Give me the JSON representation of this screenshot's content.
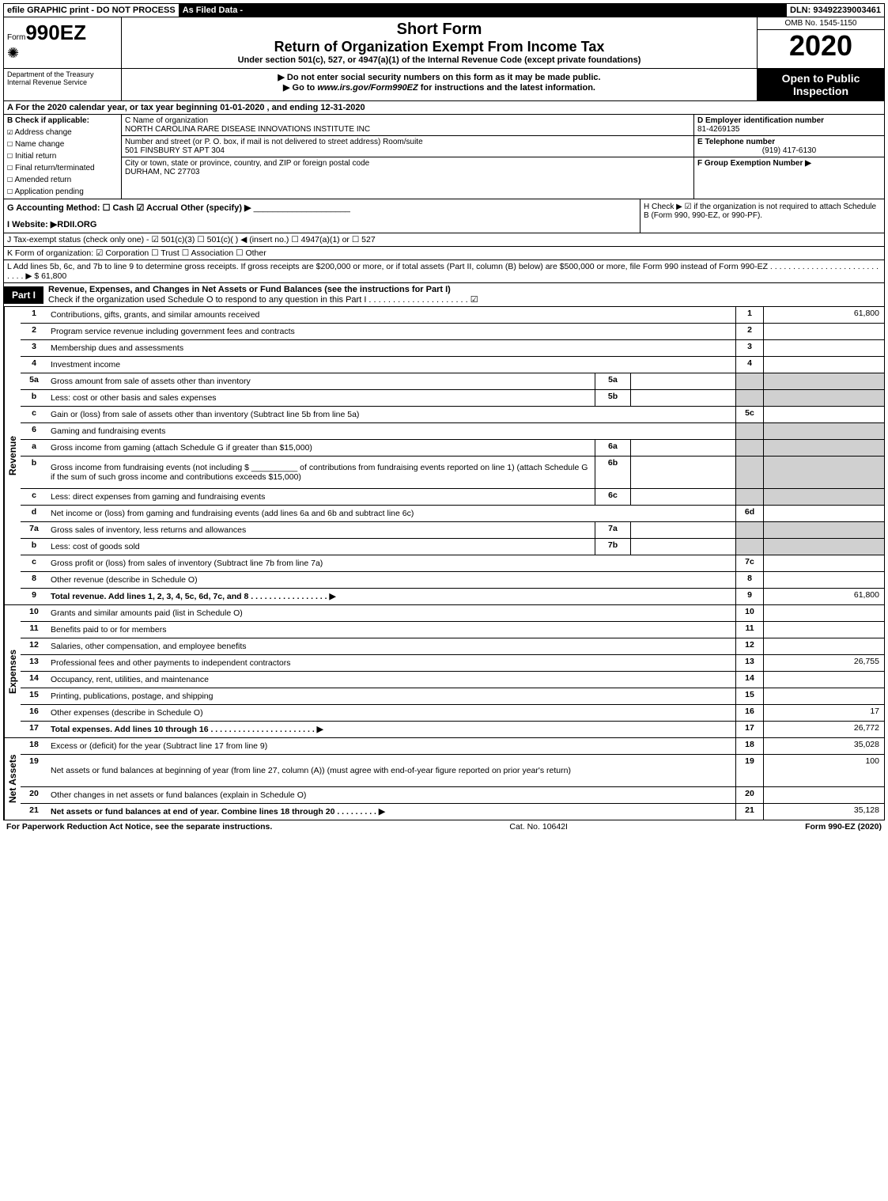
{
  "topbar": {
    "efile": "efile GRAPHIC print - DO NOT PROCESS",
    "asfiled": "As Filed Data -",
    "dln": "DLN: 93492239003461"
  },
  "header": {
    "form_prefix": "Form",
    "form_num": "990EZ",
    "short_form": "Short Form",
    "title": "Return of Organization Exempt From Income Tax",
    "subtitle": "Under section 501(c), 527, or 4947(a)(1) of the Internal Revenue Code (except private foundations)",
    "warn1": "▶ Do not enter social security numbers on this form as it may be made public.",
    "warn2": "▶ Go to www.irs.gov/Form990EZ for instructions and the latest information.",
    "omb": "OMB No. 1545-1150",
    "year": "2020",
    "badge": "Open to Public Inspection",
    "dept": "Department of the Treasury\nInternal Revenue Service"
  },
  "line_a": "A  For the 2020 calendar year, or tax year beginning 01-01-2020 , and ending 12-31-2020",
  "box_b": {
    "title": "B  Check if applicable:",
    "items": [
      {
        "chk": "☑",
        "label": "Address change"
      },
      {
        "chk": "☐",
        "label": "Name change"
      },
      {
        "chk": "☐",
        "label": "Initial return"
      },
      {
        "chk": "☐",
        "label": "Final return/terminated"
      },
      {
        "chk": "☐",
        "label": "Amended return"
      },
      {
        "chk": "☐",
        "label": "Application pending"
      }
    ]
  },
  "box_c": {
    "name_label": "C Name of organization",
    "name": "NORTH CAROLINA RARE DISEASE INNOVATIONS INSTITUTE INC",
    "addr_label": "Number and street (or P. O. box, if mail is not delivered to street address)   Room/suite",
    "addr": "501 FINSBURY ST APT 304",
    "city_label": "City or town, state or province, country, and ZIP or foreign postal code",
    "city": "DURHAM, NC  27703"
  },
  "box_de": {
    "d_label": "D Employer identification number",
    "d_val": "81-4269135",
    "e_label": "E Telephone number",
    "e_val": "(919) 417-6130",
    "f_label": "F Group Exemption Number  ▶"
  },
  "row_g": "G Accounting Method:   ☐ Cash   ☑ Accrual   Other (specify) ▶",
  "row_h": "H   Check ▶   ☑ if the organization is not required to attach Schedule B (Form 990, 990-EZ, or 990-PF).",
  "row_i": "I Website: ▶RDII.ORG",
  "row_j": "J Tax-exempt status (check only one) - ☑ 501(c)(3) ☐ 501(c)(  ) ◀ (insert no.) ☐ 4947(a)(1) or ☐ 527",
  "row_k": "K Form of organization:   ☑ Corporation   ☐ Trust   ☐ Association   ☐ Other",
  "row_l": "L Add lines 5b, 6c, and 7b to line 9 to determine gross receipts. If gross receipts are $200,000 or more, or if total assets (Part II, column (B) below) are $500,000 or more, file Form 990 instead of Form 990-EZ . . . . . . . . . . . . . . . . . . . . . . . . . . . . ▶ $ 61,800",
  "part1": {
    "tag": "Part I",
    "title": "Revenue, Expenses, and Changes in Net Assets or Fund Balances (see the instructions for Part I)",
    "sub": "Check if the organization used Schedule O to respond to any question in this Part I . . . . . . . . . . . . . . . . . . . . . ☑"
  },
  "sections": {
    "revenue": "Revenue",
    "expenses": "Expenses",
    "netassets": "Net Assets"
  },
  "rows": [
    {
      "n": "1",
      "d": "Contributions, gifts, grants, and similar amounts received",
      "rn": "1",
      "v": "61,800"
    },
    {
      "n": "2",
      "d": "Program service revenue including government fees and contracts",
      "rn": "2",
      "v": ""
    },
    {
      "n": "3",
      "d": "Membership dues and assessments",
      "rn": "3",
      "v": ""
    },
    {
      "n": "4",
      "d": "Investment income",
      "rn": "4",
      "v": ""
    },
    {
      "n": "5a",
      "d": "Gross amount from sale of assets other than inventory",
      "sn": "5a",
      "sv": "",
      "gray": true
    },
    {
      "n": "b",
      "d": "Less: cost or other basis and sales expenses",
      "sn": "5b",
      "sv": "",
      "gray": true
    },
    {
      "n": "c",
      "d": "Gain or (loss) from sale of assets other than inventory (Subtract line 5b from line 5a)",
      "rn": "5c",
      "v": ""
    },
    {
      "n": "6",
      "d": "Gaming and fundraising events",
      "gray": true,
      "noval": true
    },
    {
      "n": "a",
      "d": "Gross income from gaming (attach Schedule G if greater than $15,000)",
      "sn": "6a",
      "sv": "",
      "gray": true
    },
    {
      "n": "b",
      "d": "Gross income from fundraising events (not including $ __________ of contributions from fundraising events reported on line 1) (attach Schedule G if the sum of such gross income and contributions exceeds $15,000)",
      "sn": "6b",
      "sv": "",
      "gray": true,
      "tall": true
    },
    {
      "n": "c",
      "d": "Less: direct expenses from gaming and fundraising events",
      "sn": "6c",
      "sv": "",
      "gray": true
    },
    {
      "n": "d",
      "d": "Net income or (loss) from gaming and fundraising events (add lines 6a and 6b and subtract line 6c)",
      "rn": "6d",
      "v": ""
    },
    {
      "n": "7a",
      "d": "Gross sales of inventory, less returns and allowances",
      "sn": "7a",
      "sv": "",
      "gray": true
    },
    {
      "n": "b",
      "d": "Less: cost of goods sold",
      "sn": "7b",
      "sv": "",
      "gray": true
    },
    {
      "n": "c",
      "d": "Gross profit or (loss) from sales of inventory (Subtract line 7b from line 7a)",
      "rn": "7c",
      "v": ""
    },
    {
      "n": "8",
      "d": "Other revenue (describe in Schedule O)",
      "rn": "8",
      "v": ""
    },
    {
      "n": "9",
      "d": "Total revenue. Add lines 1, 2, 3, 4, 5c, 6d, 7c, and 8 . . . . . . . . . . . . . . . . . ▶",
      "rn": "9",
      "v": "61,800",
      "bold": true
    }
  ],
  "exp_rows": [
    {
      "n": "10",
      "d": "Grants and similar amounts paid (list in Schedule O)",
      "rn": "10",
      "v": ""
    },
    {
      "n": "11",
      "d": "Benefits paid to or for members",
      "rn": "11",
      "v": ""
    },
    {
      "n": "12",
      "d": "Salaries, other compensation, and employee benefits",
      "rn": "12",
      "v": ""
    },
    {
      "n": "13",
      "d": "Professional fees and other payments to independent contractors",
      "rn": "13",
      "v": "26,755"
    },
    {
      "n": "14",
      "d": "Occupancy, rent, utilities, and maintenance",
      "rn": "14",
      "v": ""
    },
    {
      "n": "15",
      "d": "Printing, publications, postage, and shipping",
      "rn": "15",
      "v": ""
    },
    {
      "n": "16",
      "d": "Other expenses (describe in Schedule O)",
      "rn": "16",
      "v": "17"
    },
    {
      "n": "17",
      "d": "Total expenses. Add lines 10 through 16 . . . . . . . . . . . . . . . . . . . . . . . ▶",
      "rn": "17",
      "v": "26,772",
      "bold": true
    }
  ],
  "net_rows": [
    {
      "n": "18",
      "d": "Excess or (deficit) for the year (Subtract line 17 from line 9)",
      "rn": "18",
      "v": "35,028"
    },
    {
      "n": "19",
      "d": "Net assets or fund balances at beginning of year (from line 27, column (A)) (must agree with end-of-year figure reported on prior year's return)",
      "rn": "19",
      "v": "100",
      "tall": true
    },
    {
      "n": "20",
      "d": "Other changes in net assets or fund balances (explain in Schedule O)",
      "rn": "20",
      "v": ""
    },
    {
      "n": "21",
      "d": "Net assets or fund balances at end of year. Combine lines 18 through 20 . . . . . . . . . ▶",
      "rn": "21",
      "v": "35,128",
      "bold": true
    }
  ],
  "footer": {
    "left": "For Paperwork Reduction Act Notice, see the separate instructions.",
    "mid": "Cat. No. 10642I",
    "right": "Form 990-EZ (2020)"
  }
}
